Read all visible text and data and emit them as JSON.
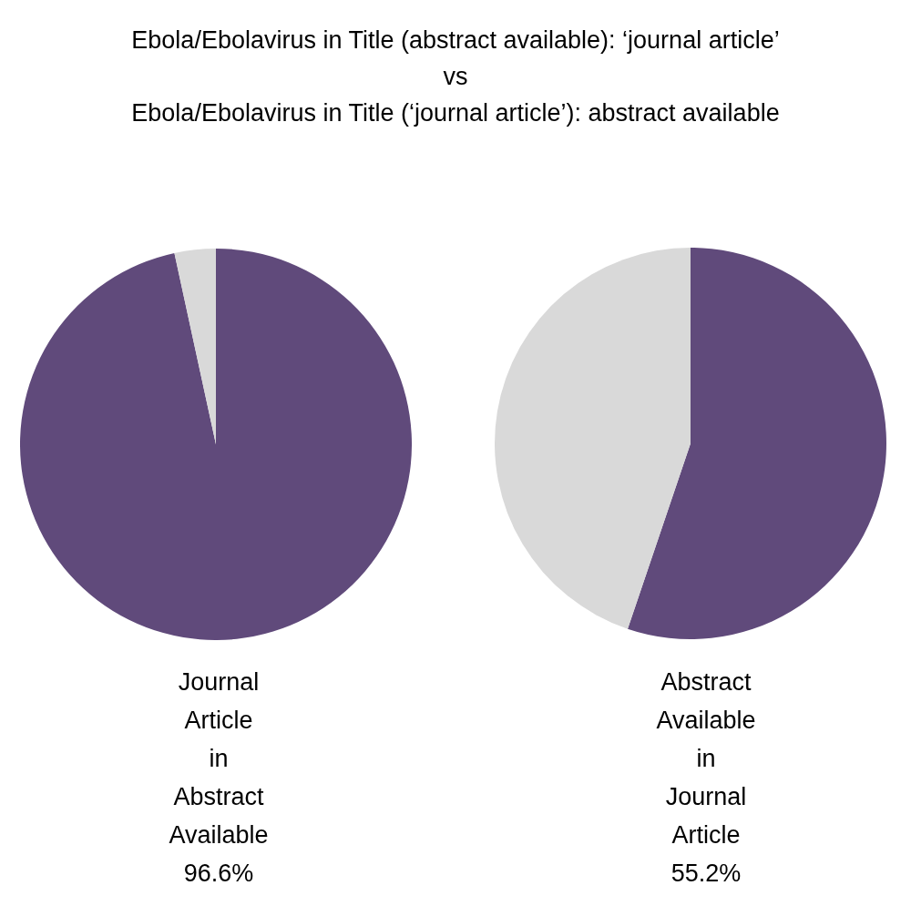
{
  "chart_data": [
    {
      "type": "pie",
      "title": "Ebola/Ebolavirus in Title (abstract available): ‘journal article’\nvs\nEbola/Ebolavirus in Title (‘journal article’): abstract available",
      "categories": [
        "Journal Article in Abstract Available",
        null
      ],
      "values": [
        96.6,
        3.4
      ],
      "value_labels": [
        "96.6%",
        null
      ],
      "colors": [
        "#604a7b",
        "#d9d9d9"
      ]
    },
    {
      "type": "pie",
      "categories": [
        "Abstract Available in Journal Article",
        null
      ],
      "values": [
        55.2,
        44.8
      ],
      "value_labels": [
        "55.2%",
        null
      ],
      "colors": [
        "#604a7b",
        "#d9d9d9"
      ]
    }
  ]
}
